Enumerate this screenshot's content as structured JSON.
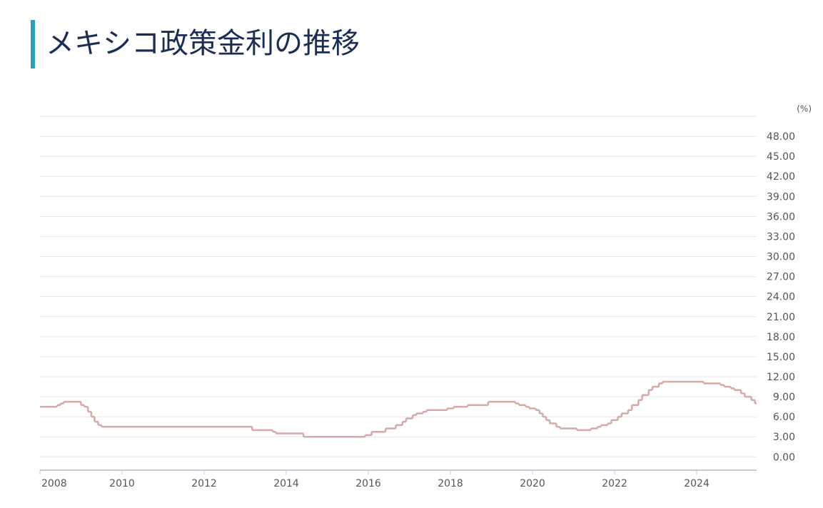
{
  "chart_data": {
    "type": "step-line",
    "title": "メキシコ政策金利の推移",
    "unit": "(%)",
    "x": [
      2008.0,
      2008.42,
      2008.5,
      2008.58,
      2009.0,
      2009.08,
      2009.17,
      2009.25,
      2009.33,
      2009.42,
      2009.5,
      2013.17,
      2013.67,
      2013.75,
      2014.42,
      2015.92,
      2016.08,
      2016.42,
      2016.67,
      2016.83,
      2016.92,
      2017.08,
      2017.17,
      2017.33,
      2017.42,
      2017.92,
      2018.08,
      2018.42,
      2018.92,
      2019.58,
      2019.67,
      2019.83,
      2019.92,
      2020.08,
      2020.17,
      2020.25,
      2020.33,
      2020.42,
      2020.58,
      2020.67,
      2021.08,
      2021.42,
      2021.58,
      2021.67,
      2021.83,
      2021.92,
      2022.08,
      2022.17,
      2022.33,
      2022.42,
      2022.58,
      2022.67,
      2022.83,
      2022.92,
      2023.08,
      2023.17,
      2024.17,
      2024.58,
      2024.67,
      2024.83,
      2024.92,
      2025.08,
      2025.17,
      2025.33,
      2025.42
    ],
    "values": [
      7.5,
      7.75,
      8.0,
      8.25,
      7.75,
      7.5,
      6.75,
      6.0,
      5.25,
      4.75,
      4.5,
      4.0,
      3.75,
      3.5,
      3.0,
      3.25,
      3.75,
      4.25,
      4.75,
      5.25,
      5.75,
      6.25,
      6.5,
      6.75,
      7.0,
      7.25,
      7.5,
      7.75,
      8.25,
      8.0,
      7.75,
      7.5,
      7.25,
      7.0,
      6.5,
      6.0,
      5.5,
      5.0,
      4.5,
      4.25,
      4.0,
      4.25,
      4.5,
      4.75,
      5.0,
      5.5,
      6.0,
      6.5,
      7.0,
      7.75,
      8.5,
      9.25,
      10.0,
      10.5,
      11.0,
      11.25,
      11.0,
      10.75,
      10.5,
      10.25,
      10.0,
      9.5,
      9.0,
      8.5,
      8.0
    ],
    "color": "#d4aaa8",
    "xlim": [
      2008,
      2025.46
    ],
    "xticks": [
      2008,
      2010,
      2012,
      2014,
      2016,
      2018,
      2020,
      2022,
      2024
    ],
    "ylim": [
      -2,
      51
    ],
    "yticks": [
      {
        "value": 0,
        "label": "0.00"
      },
      {
        "value": 3,
        "label": "3.00"
      },
      {
        "value": 6,
        "label": "6.00"
      },
      {
        "value": 9,
        "label": "9.00"
      },
      {
        "value": 12,
        "label": "12.00"
      },
      {
        "value": 15,
        "label": "15.00"
      },
      {
        "value": 18,
        "label": "18.00"
      },
      {
        "value": 21,
        "label": "21.00"
      },
      {
        "value": 24,
        "label": "24.00"
      },
      {
        "value": 27,
        "label": "27.00"
      },
      {
        "value": 30,
        "label": "30.00"
      },
      {
        "value": 33,
        "label": "33.00"
      },
      {
        "value": 36,
        "label": "36.00"
      },
      {
        "value": 39,
        "label": "39.00"
      },
      {
        "value": 42,
        "label": "42.00"
      },
      {
        "value": 45,
        "label": "45.00"
      },
      {
        "value": 48,
        "label": "48.00"
      }
    ],
    "grid": true
  }
}
